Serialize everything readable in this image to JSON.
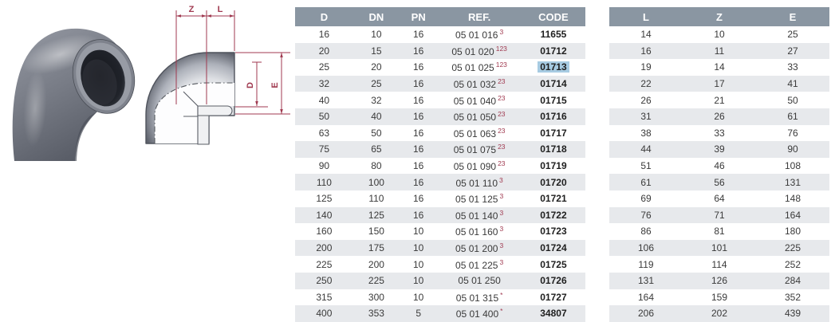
{
  "colors": {
    "table_header_bg": "#8a96a2",
    "row_stripe": "#e7e9ec",
    "dimension_line_red": "#a03a50",
    "code_highlight_blue": "#a7cbe2"
  },
  "diagram": {
    "labels": {
      "z": "Z",
      "l": "L",
      "d": "D",
      "e": "E"
    }
  },
  "main_table": {
    "columns": [
      "d",
      "dn",
      "pn",
      "ref",
      "code"
    ],
    "headers": [
      "D",
      "DN",
      "PN",
      "REF.",
      "CODE"
    ],
    "rows": [
      {
        "d": "16",
        "dn": "10",
        "pn": "16",
        "ref": "05 01 016",
        "sup": "3",
        "code": "11655",
        "highlight": false
      },
      {
        "d": "20",
        "dn": "15",
        "pn": "16",
        "ref": "05 01 020",
        "sup": "123",
        "code": "01712",
        "highlight": false
      },
      {
        "d": "25",
        "dn": "20",
        "pn": "16",
        "ref": "05 01 025",
        "sup": "123",
        "code": "01713",
        "highlight": true
      },
      {
        "d": "32",
        "dn": "25",
        "pn": "16",
        "ref": "05 01 032",
        "sup": "23",
        "code": "01714",
        "highlight": false
      },
      {
        "d": "40",
        "dn": "32",
        "pn": "16",
        "ref": "05 01 040",
        "sup": "23",
        "code": "01715",
        "highlight": false
      },
      {
        "d": "50",
        "dn": "40",
        "pn": "16",
        "ref": "05 01 050",
        "sup": "23",
        "code": "01716",
        "highlight": false
      },
      {
        "d": "63",
        "dn": "50",
        "pn": "16",
        "ref": "05 01 063",
        "sup": "23",
        "code": "01717",
        "highlight": false
      },
      {
        "d": "75",
        "dn": "65",
        "pn": "16",
        "ref": "05 01 075",
        "sup": "23",
        "code": "01718",
        "highlight": false
      },
      {
        "d": "90",
        "dn": "80",
        "pn": "16",
        "ref": "05 01 090",
        "sup": "23",
        "code": "01719",
        "highlight": false
      },
      {
        "d": "110",
        "dn": "100",
        "pn": "16",
        "ref": "05 01 110",
        "sup": "3",
        "code": "01720",
        "highlight": false
      },
      {
        "d": "125",
        "dn": "110",
        "pn": "16",
        "ref": "05 01 125",
        "sup": "3",
        "code": "01721",
        "highlight": false
      },
      {
        "d": "140",
        "dn": "125",
        "pn": "16",
        "ref": "05 01 140",
        "sup": "3",
        "code": "01722",
        "highlight": false
      },
      {
        "d": "160",
        "dn": "150",
        "pn": "10",
        "ref": "05 01 160",
        "sup": "3",
        "code": "01723",
        "highlight": false
      },
      {
        "d": "200",
        "dn": "175",
        "pn": "10",
        "ref": "05 01 200",
        "sup": "3",
        "code": "01724",
        "highlight": false
      },
      {
        "d": "225",
        "dn": "200",
        "pn": "10",
        "ref": "05 01 225",
        "sup": "3",
        "code": "01725",
        "highlight": false
      },
      {
        "d": "250",
        "dn": "225",
        "pn": "10",
        "ref": "05 01 250",
        "sup": "",
        "code": "01726",
        "highlight": false
      },
      {
        "d": "315",
        "dn": "300",
        "pn": "10",
        "ref": "05 01 315",
        "sup": "*",
        "code": "01727",
        "highlight": false
      },
      {
        "d": "400",
        "dn": "353",
        "pn": "5",
        "ref": "05 01 400",
        "sup": "*",
        "code": "34807",
        "highlight": false
      }
    ]
  },
  "dimensions_table": {
    "columns": [
      "l",
      "z",
      "e"
    ],
    "headers": [
      "L",
      "Z",
      "E"
    ],
    "rows": [
      {
        "l": "14",
        "z": "10",
        "e": "25"
      },
      {
        "l": "16",
        "z": "11",
        "e": "27"
      },
      {
        "l": "19",
        "z": "14",
        "e": "33"
      },
      {
        "l": "22",
        "z": "17",
        "e": "41"
      },
      {
        "l": "26",
        "z": "21",
        "e": "50"
      },
      {
        "l": "31",
        "z": "26",
        "e": "61"
      },
      {
        "l": "38",
        "z": "33",
        "e": "76"
      },
      {
        "l": "44",
        "z": "39",
        "e": "90"
      },
      {
        "l": "51",
        "z": "46",
        "e": "108"
      },
      {
        "l": "61",
        "z": "56",
        "e": "131"
      },
      {
        "l": "69",
        "z": "64",
        "e": "148"
      },
      {
        "l": "76",
        "z": "71",
        "e": "164"
      },
      {
        "l": "86",
        "z": "81",
        "e": "180"
      },
      {
        "l": "106",
        "z": "101",
        "e": "225"
      },
      {
        "l": "119",
        "z": "114",
        "e": "252"
      },
      {
        "l": "131",
        "z": "126",
        "e": "284"
      },
      {
        "l": "164",
        "z": "159",
        "e": "352"
      },
      {
        "l": "206",
        "z": "202",
        "e": "439"
      }
    ]
  }
}
